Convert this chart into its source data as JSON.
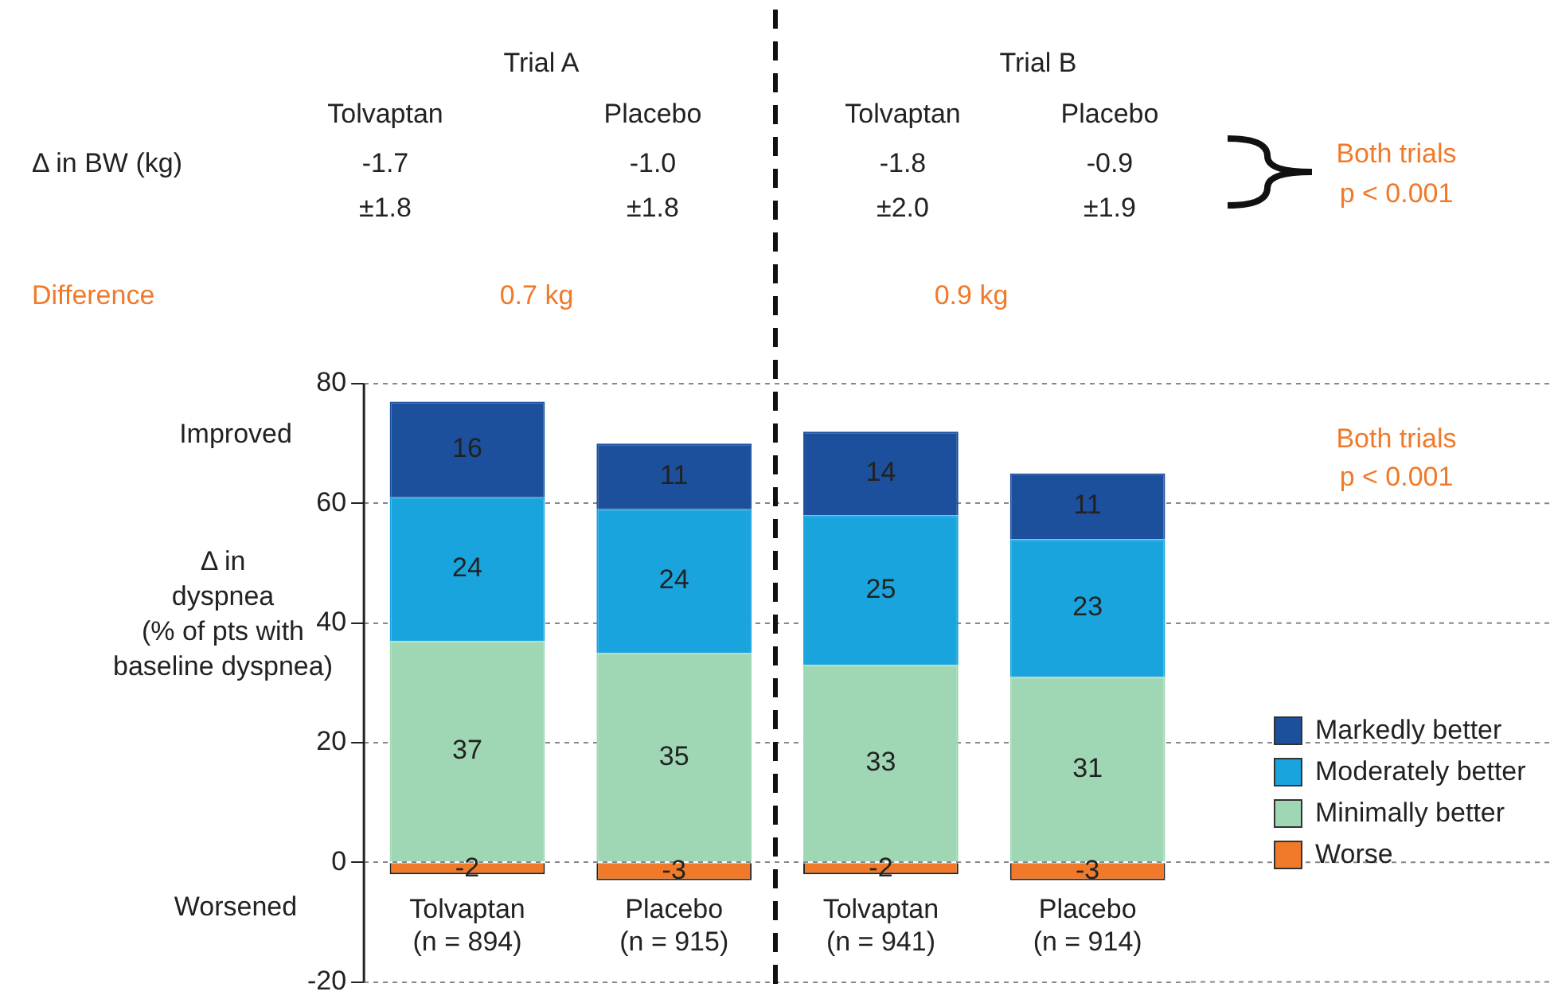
{
  "chart_data": {
    "type": "bar",
    "stacked": true,
    "ylabel": "Δ in\ndyspnea\n(% of pts with\nbaseline dyspnea)",
    "categories": [
      "Tolvaptan\n(n = 894)",
      "Placebo\n(n = 915)",
      "Tolvaptan\n(n = 941)",
      "Placebo\n(n = 914)"
    ],
    "series": [
      {
        "name": "Worse",
        "color": "#f07a2a",
        "values": [
          -2,
          -3,
          -2,
          -3
        ]
      },
      {
        "name": "Minimally better",
        "color": "#9fd6b3",
        "values": [
          37,
          35,
          33,
          31
        ]
      },
      {
        "name": "Moderately better",
        "color": "#19a4de",
        "values": [
          24,
          24,
          25,
          23
        ]
      },
      {
        "name": "Markedly better",
        "color": "#1c4f9c",
        "values": [
          16,
          11,
          14,
          11
        ]
      }
    ],
    "ylim": [
      -20,
      80
    ],
    "yticks": [
      -20,
      0,
      20,
      40,
      60,
      80
    ],
    "grid": "y",
    "legend": "right",
    "data_labels": true,
    "annotations": [
      "Trial A",
      "Trial B",
      "Tolvaptan",
      "Placebo",
      "Tolvaptan",
      "Placebo",
      "Δ in BW (kg)",
      "-1.7",
      "±1.8",
      "-1.0",
      "±1.8",
      "-1.8",
      "±2.0",
      "-0.9",
      "±1.9",
      "Both trials",
      "p < 0.001",
      "Difference",
      "0.7 kg",
      "0.9 kg",
      "Both trials",
      "p < 0.001",
      "Improved",
      "Worsened"
    ]
  }
}
